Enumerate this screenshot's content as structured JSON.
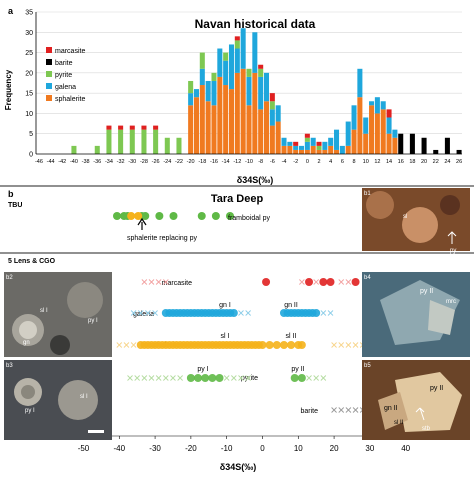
{
  "panel_a": {
    "letter": "a",
    "chart_data": {
      "type": "bar",
      "stacked": true,
      "title": "Navan historical data",
      "xlabel": "δ34S(‰)",
      "ylabel": "Frequency",
      "ylim": [
        0,
        35
      ],
      "yticks": [
        0,
        5,
        10,
        15,
        20,
        25,
        30,
        35
      ],
      "grid": "horizontal",
      "legend_position": "top-left",
      "categories": [
        -46,
        -45,
        -44,
        -43,
        -42,
        -41,
        -40,
        -39,
        -38,
        -37,
        -36,
        -35,
        -34,
        -33,
        -32,
        -31,
        -30,
        -29,
        -28,
        -27,
        -26,
        -25,
        -24,
        -23,
        -22,
        -21,
        -20,
        -19,
        -18,
        -17,
        -16,
        -15,
        -14,
        -13,
        -12,
        -11,
        -10,
        -9,
        -8,
        -7,
        -6,
        -5,
        -4,
        -3,
        -2,
        -1,
        0,
        1,
        2,
        3,
        4,
        5,
        6,
        7,
        8,
        9,
        10,
        11,
        12,
        13,
        14,
        15,
        16,
        17,
        18,
        19,
        20,
        21,
        22,
        23,
        24,
        25,
        26
      ],
      "xticks": [
        -46,
        -44,
        -42,
        -40,
        -38,
        -36,
        -34,
        -32,
        -30,
        -28,
        -26,
        -24,
        -22,
        -20,
        -18,
        -16,
        -14,
        -12,
        -10,
        -8,
        -6,
        -4,
        -2,
        0,
        2,
        4,
        6,
        8,
        10,
        12,
        14,
        16,
        18,
        20,
        22,
        24,
        26
      ],
      "series": [
        {
          "name": "sphalerite",
          "color": "#f07a20",
          "values": [
            0,
            0,
            0,
            0,
            0,
            0,
            0,
            0,
            0,
            0,
            0,
            0,
            0,
            0,
            0,
            0,
            0,
            0,
            0,
            0,
            0,
            0,
            0,
            0,
            0,
            0,
            12,
            14,
            17,
            13,
            12,
            19,
            17,
            16,
            20,
            21,
            12,
            20,
            11,
            13,
            7,
            8,
            2,
            2,
            1,
            1,
            1,
            2,
            1,
            1,
            2,
            1,
            0,
            2,
            6,
            14,
            5,
            12,
            10,
            11,
            5,
            4,
            0,
            0,
            0,
            0,
            0,
            0,
            0,
            0,
            0,
            0,
            0
          ]
        },
        {
          "name": "galena",
          "color": "#1fa7dc",
          "values": [
            0,
            0,
            0,
            0,
            0,
            0,
            0,
            0,
            0,
            0,
            0,
            0,
            0,
            0,
            0,
            0,
            0,
            0,
            0,
            0,
            0,
            0,
            0,
            0,
            0,
            0,
            3,
            2,
            4,
            5,
            6,
            7,
            6,
            11,
            6,
            10,
            7,
            10,
            8,
            7,
            4,
            4,
            2,
            1,
            1,
            1,
            2,
            2,
            0,
            2,
            2,
            5,
            2,
            6,
            6,
            7,
            4,
            1,
            4,
            2,
            4,
            2,
            0,
            0,
            0,
            0,
            0,
            0,
            0,
            0,
            0,
            0,
            0
          ]
        },
        {
          "name": "pyrite",
          "color": "#7ec852",
          "values": [
            0,
            0,
            0,
            0,
            0,
            0,
            2,
            0,
            0,
            0,
            2,
            0,
            6,
            0,
            6,
            0,
            6,
            0,
            6,
            0,
            6,
            0,
            4,
            0,
            4,
            0,
            3,
            0,
            4,
            0,
            2,
            0,
            2,
            0,
            2,
            0,
            2,
            0,
            2,
            0,
            2,
            0,
            0,
            0,
            0,
            0,
            1,
            0,
            1,
            0,
            0,
            0,
            0,
            0,
            0,
            0,
            0,
            0,
            0,
            0,
            0,
            0,
            0,
            0,
            0,
            0,
            0,
            0,
            0,
            0,
            0,
            0,
            0
          ]
        },
        {
          "name": "barite",
          "color": "#000000",
          "values": [
            0,
            0,
            0,
            0,
            0,
            0,
            0,
            0,
            0,
            0,
            0,
            0,
            0,
            0,
            0,
            0,
            0,
            0,
            0,
            0,
            0,
            0,
            0,
            0,
            0,
            0,
            0,
            0,
            0,
            0,
            0,
            0,
            0,
            0,
            0,
            0,
            0,
            0,
            0,
            0,
            0,
            0,
            0,
            0,
            0,
            0,
            0,
            0,
            0,
            0,
            0,
            0,
            0,
            0,
            0,
            0,
            0,
            0,
            0,
            0,
            0,
            0,
            5,
            0,
            5,
            0,
            4,
            0,
            1,
            0,
            4,
            0,
            1
          ]
        },
        {
          "name": "marcasite",
          "color": "#e02020",
          "values": [
            0,
            0,
            0,
            0,
            0,
            0,
            0,
            0,
            0,
            0,
            0,
            0,
            1,
            0,
            1,
            0,
            1,
            0,
            1,
            0,
            1,
            0,
            0,
            0,
            0,
            0,
            0,
            0,
            0,
            0,
            0,
            0,
            0,
            0,
            1,
            0,
            0,
            0,
            1,
            0,
            2,
            0,
            0,
            0,
            1,
            0,
            1,
            0,
            1,
            0,
            0,
            0,
            0,
            0,
            0,
            0,
            0,
            0,
            0,
            0,
            2,
            0,
            0,
            0,
            0,
            0,
            0,
            0,
            0,
            0,
            0,
            0,
            0
          ]
        }
      ]
    }
  },
  "panel_b": {
    "letter": "b",
    "title": "Tara Deep",
    "tbu_label": "TBU",
    "lens_label": "5 Lens & CGO",
    "sphalerite_replacing_label": "sphalerite replacing py",
    "framboidal_label": "framboidal py",
    "xlabel": "δ34S(‰)",
    "xticks": [
      -50,
      -40,
      -30,
      -20,
      -10,
      0,
      10,
      20,
      30,
      40
    ],
    "rows": {
      "marcasite": {
        "label": "marcasite"
      },
      "galena": {
        "label": "galena",
        "group1": "gn I",
        "group2": "gn II"
      },
      "sphalerite": {
        "label": "sphalerite",
        "group1": "sl I",
        "group2": "sl II"
      },
      "pyrite": {
        "label": "pyrite",
        "group1": "py I",
        "group2": "py II"
      },
      "barite": {
        "label": "barite"
      }
    },
    "colors": {
      "marcasite": "#e02020",
      "galena": "#1fa7dc",
      "sphalerite": "#f5b21b",
      "pyrite": "#5fb946",
      "barite": "#666666",
      "cross_marcasite": "#f2a0a0",
      "cross_galena": "#8ccde8",
      "cross_sphalerite": "#f7d48a",
      "cross_pyrite": "#b4dca0",
      "cross_barite": "#999999"
    },
    "tbu_points": {
      "sphalerite": [
        -48,
        -46
      ],
      "pyrite": [
        -52,
        -50,
        -49,
        -45,
        -44,
        -40,
        -36,
        -28,
        -24,
        -20
      ]
    },
    "chart_data": {
      "type": "scatter",
      "title": "Tara Deep",
      "xlabel": "δ34S(‰)",
      "xlim": [
        -56,
        44
      ],
      "series": [
        {
          "name": "marcasite",
          "filled": [
            1,
            13,
            17,
            19,
            26
          ],
          "crosses": [
            -33,
            -31,
            -29,
            -27,
            11,
            15,
            22,
            24
          ]
        },
        {
          "name": "galena",
          "filled": [
            -27,
            -26,
            -25,
            -24,
            -23,
            -22,
            -21,
            -20,
            -19,
            -18,
            -17,
            -16,
            -15,
            -14,
            -13,
            -12,
            -11,
            -10,
            -9,
            -8,
            6,
            7,
            8,
            9,
            10,
            11,
            12,
            13,
            14,
            15
          ],
          "crosses": [
            -36,
            -34,
            -32,
            -30,
            -6,
            -4,
            17,
            19
          ]
        },
        {
          "name": "sphalerite",
          "filled": [
            -34,
            -33,
            -32,
            -31,
            -30,
            -29,
            -28,
            -27,
            -26,
            -25,
            -24,
            -23,
            -22,
            -21,
            -20,
            -19,
            -18,
            -17,
            -16,
            -15,
            -14,
            -13,
            -12,
            -11,
            -10,
            -9,
            -8,
            -7,
            -6,
            -5,
            -4,
            -3,
            -2,
            -1,
            0,
            2,
            4,
            6,
            8,
            10,
            11
          ],
          "crosses": [
            -40,
            -38,
            -36,
            20,
            22,
            24,
            26,
            28,
            30
          ]
        },
        {
          "name": "pyrite",
          "filled": [
            -20,
            -18,
            -16,
            -14,
            -12,
            9,
            11
          ],
          "crosses": [
            -37,
            -35,
            -33,
            -31,
            -29,
            -27,
            -25,
            -23,
            -10,
            -8,
            -6,
            -4,
            13,
            15,
            17
          ]
        },
        {
          "name": "barite",
          "filled": [],
          "crosses": [
            20,
            22,
            24,
            26,
            28,
            30,
            31,
            32
          ]
        }
      ]
    }
  },
  "photos": {
    "b1": {
      "tag": "b1",
      "labels": [
        "sl",
        "py"
      ]
    },
    "b2": {
      "tag": "b2",
      "labels": [
        "sl I",
        "py I",
        "gn"
      ]
    },
    "b3": {
      "tag": "b3",
      "labels": [
        "py I",
        "sl I"
      ]
    },
    "b4": {
      "tag": "b4",
      "labels": [
        "py II",
        "mrc"
      ]
    },
    "b5": {
      "tag": "b5",
      "labels": [
        "gn II",
        "py II",
        "sl II",
        "stb"
      ]
    }
  }
}
